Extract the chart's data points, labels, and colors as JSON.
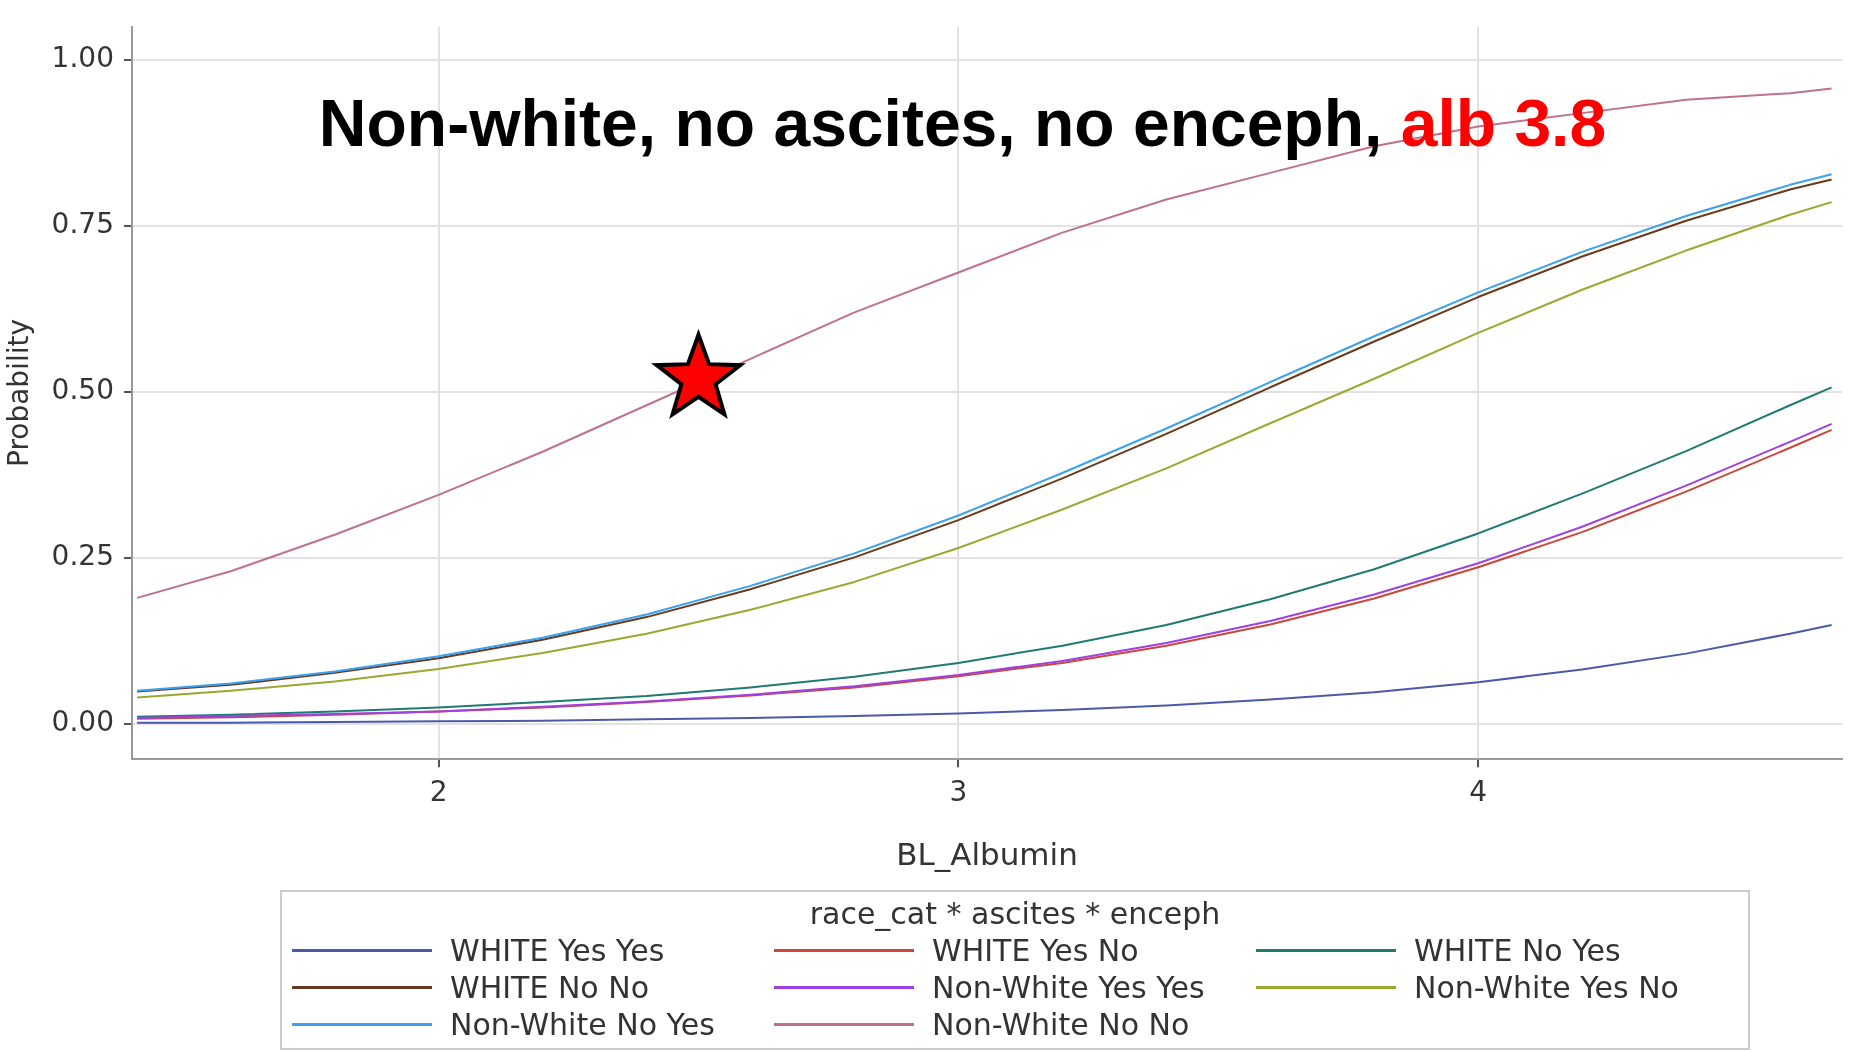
{
  "chart_data": {
    "type": "line",
    "title": "Non-white, no ascites, no enceph,",
    "annotations": [
      "alb 3.8"
    ],
    "xlabel": "BL_Albumin",
    "ylabel": "Probability",
    "legend_title": "race_cat * ascites * enceph",
    "legend": "bottom",
    "grid": true,
    "marker": "none",
    "line_style": "solid",
    "x": [
      1.42,
      1.6,
      1.8,
      2.0,
      2.2,
      2.4,
      2.6,
      2.8,
      3.0,
      3.2,
      3.4,
      3.6,
      3.8,
      4.0,
      4.2,
      4.4,
      4.6,
      4.68
    ],
    "xlim": [
      1.41,
      4.7
    ],
    "xticks": [
      2,
      3,
      4
    ],
    "ylim": [
      -0.053,
      1.05
    ],
    "yticks": [
      {
        "value": 0,
        "label": "0.00"
      },
      {
        "value": 0.25,
        "label": "0.25"
      },
      {
        "value": 0.5,
        "label": "0.50"
      },
      {
        "value": 0.75,
        "label": "0.75"
      },
      {
        "value": 1,
        "label": "1.00"
      }
    ],
    "series": [
      {
        "name": "WHITE Yes Yes",
        "color": "#4b5aa8",
        "values": [
          0.002,
          0.002,
          0.003,
          0.004,
          0.005,
          0.007,
          0.009,
          0.012,
          0.016,
          0.021,
          0.028,
          0.037,
          0.048,
          0.063,
          0.082,
          0.106,
          0.136,
          0.149
        ]
      },
      {
        "name": "WHITE Yes No",
        "color": "#c8483a",
        "values": [
          0.008,
          0.01,
          0.014,
          0.019,
          0.025,
          0.033,
          0.043,
          0.055,
          0.072,
          0.092,
          0.118,
          0.15,
          0.189,
          0.236,
          0.289,
          0.35,
          0.416,
          0.443
        ]
      },
      {
        "name": "WHITE No Yes",
        "color": "#1f7a72",
        "values": [
          0.011,
          0.014,
          0.019,
          0.025,
          0.033,
          0.042,
          0.055,
          0.071,
          0.092,
          0.118,
          0.149,
          0.188,
          0.233,
          0.287,
          0.347,
          0.411,
          0.48,
          0.507
        ]
      },
      {
        "name": "WHITE No No",
        "color": "#6b3a1e",
        "values": [
          0.049,
          0.059,
          0.077,
          0.099,
          0.127,
          0.161,
          0.203,
          0.251,
          0.307,
          0.37,
          0.437,
          0.507,
          0.576,
          0.643,
          0.704,
          0.758,
          0.805,
          0.82
        ]
      },
      {
        "name": "Non-White Yes Yes",
        "color": "#a040e0",
        "values": [
          0.009,
          0.012,
          0.015,
          0.019,
          0.026,
          0.034,
          0.044,
          0.057,
          0.074,
          0.095,
          0.122,
          0.155,
          0.195,
          0.242,
          0.297,
          0.359,
          0.425,
          0.452
        ]
      },
      {
        "name": "Non-White Yes No",
        "color": "#9aa830",
        "values": [
          0.04,
          0.05,
          0.064,
          0.083,
          0.107,
          0.136,
          0.172,
          0.214,
          0.265,
          0.323,
          0.385,
          0.453,
          0.52,
          0.589,
          0.654,
          0.713,
          0.767,
          0.786
        ]
      },
      {
        "name": "Non-White No Yes",
        "color": "#3aa0f0",
        "values": [
          0.05,
          0.061,
          0.079,
          0.102,
          0.13,
          0.165,
          0.208,
          0.257,
          0.314,
          0.378,
          0.445,
          0.515,
          0.584,
          0.65,
          0.711,
          0.765,
          0.812,
          0.828
        ]
      },
      {
        "name": "Non-White No No",
        "color": "#c07090",
        "values": [
          0.19,
          0.23,
          0.285,
          0.345,
          0.41,
          0.48,
          0.55,
          0.62,
          0.68,
          0.74,
          0.79,
          0.83,
          0.87,
          0.9,
          0.92,
          0.94,
          0.95,
          0.957
        ]
      },
      {
        "type": "scatter",
        "marker": "star",
        "color": "#ff0000",
        "x": [
          2.5
        ],
        "values": [
          0.52
        ]
      }
    ]
  }
}
